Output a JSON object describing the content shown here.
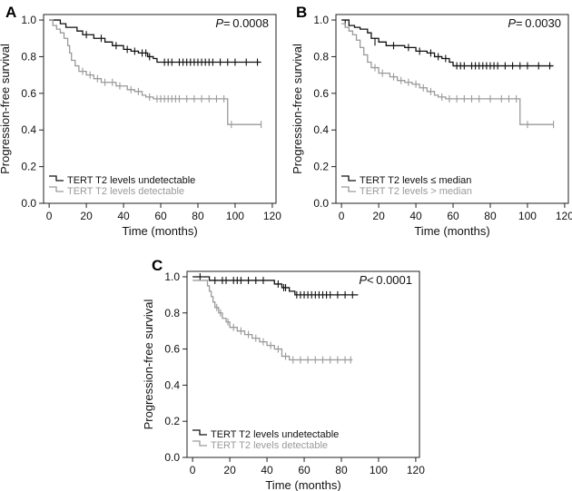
{
  "colors": {
    "dark": "#111111",
    "light": "#9a9a9a",
    "axis": "#222222"
  },
  "chart_data": [
    {
      "panel": "A",
      "type": "line",
      "subtype": "kaplan-meier",
      "xlabel": "Time (months)",
      "ylabel": "Progression-free survival",
      "xticks": [
        0,
        20,
        40,
        60,
        80,
        100,
        120
      ],
      "yticks": [
        "0.0",
        "0.2",
        "0.4",
        "0.6",
        "0.8",
        "1.0"
      ],
      "xlim": [
        -3,
        122
      ],
      "ylim": [
        0,
        1.03
      ],
      "p_label": "P",
      "p_value": "= 0.0008",
      "legend_position": "bottom-left",
      "series": [
        {
          "name": "TERT T2 levels undetectable",
          "color": "dark",
          "steps": [
            [
              0,
              1.0
            ],
            [
              6,
              0.98
            ],
            [
              9,
              0.96
            ],
            [
              15,
              0.94
            ],
            [
              18,
              0.92
            ],
            [
              24,
              0.9
            ],
            [
              30,
              0.88
            ],
            [
              34,
              0.86
            ],
            [
              40,
              0.84
            ],
            [
              44,
              0.83
            ],
            [
              48,
              0.82
            ],
            [
              53,
              0.8
            ],
            [
              56,
              0.79
            ],
            [
              58,
              0.77
            ],
            [
              114,
              0.77
            ]
          ],
          "censor": [
            [
              20,
              0.92
            ],
            [
              28,
              0.9
            ],
            [
              36,
              0.86
            ],
            [
              42,
              0.84
            ],
            [
              46,
              0.83
            ],
            [
              50,
              0.82
            ],
            [
              52,
              0.82
            ],
            [
              54,
              0.8
            ],
            [
              62,
              0.77
            ],
            [
              64,
              0.77
            ],
            [
              66,
              0.77
            ],
            [
              70,
              0.77
            ],
            [
              72,
              0.77
            ],
            [
              74,
              0.77
            ],
            [
              76,
              0.77
            ],
            [
              78,
              0.77
            ],
            [
              80,
              0.77
            ],
            [
              82,
              0.77
            ],
            [
              84,
              0.77
            ],
            [
              86,
              0.77
            ],
            [
              88,
              0.77
            ],
            [
              92,
              0.77
            ],
            [
              96,
              0.77
            ],
            [
              100,
              0.77
            ],
            [
              106,
              0.77
            ],
            [
              112,
              0.77
            ]
          ]
        },
        {
          "name": "TERT T2 levels detectable",
          "color": "light",
          "steps": [
            [
              0,
              1.0
            ],
            [
              2,
              0.97
            ],
            [
              4,
              0.95
            ],
            [
              6,
              0.93
            ],
            [
              8,
              0.9
            ],
            [
              10,
              0.86
            ],
            [
              11,
              0.82
            ],
            [
              12,
              0.78
            ],
            [
              14,
              0.75
            ],
            [
              16,
              0.72
            ],
            [
              20,
              0.7
            ],
            [
              24,
              0.68
            ],
            [
              28,
              0.66
            ],
            [
              36,
              0.64
            ],
            [
              42,
              0.62
            ],
            [
              46,
              0.61
            ],
            [
              50,
              0.59
            ],
            [
              52,
              0.58
            ],
            [
              56,
              0.57
            ],
            [
              96,
              0.57
            ],
            [
              96,
              0.43
            ],
            [
              114,
              0.43
            ]
          ],
          "censor": [
            [
              18,
              0.72
            ],
            [
              22,
              0.7
            ],
            [
              26,
              0.68
            ],
            [
              30,
              0.66
            ],
            [
              34,
              0.66
            ],
            [
              38,
              0.64
            ],
            [
              44,
              0.62
            ],
            [
              48,
              0.61
            ],
            [
              54,
              0.58
            ],
            [
              58,
              0.57
            ],
            [
              60,
              0.57
            ],
            [
              62,
              0.57
            ],
            [
              64,
              0.57
            ],
            [
              66,
              0.57
            ],
            [
              68,
              0.57
            ],
            [
              70,
              0.57
            ],
            [
              74,
              0.57
            ],
            [
              78,
              0.57
            ],
            [
              82,
              0.57
            ],
            [
              86,
              0.57
            ],
            [
              90,
              0.57
            ],
            [
              94,
              0.57
            ],
            [
              98,
              0.43
            ],
            [
              114,
              0.43
            ]
          ]
        }
      ]
    },
    {
      "panel": "B",
      "type": "line",
      "subtype": "kaplan-meier",
      "xlabel": "Time (months)",
      "ylabel": "Progression-free survival",
      "xticks": [
        0,
        20,
        40,
        60,
        80,
        100,
        120
      ],
      "yticks": [
        "0.0",
        "0.2",
        "0.4",
        "0.6",
        "0.8",
        "1.0"
      ],
      "xlim": [
        -3,
        122
      ],
      "ylim": [
        0,
        1.03
      ],
      "p_label": "P",
      "p_value": "= 0.0030",
      "legend_position": "bottom-left",
      "series": [
        {
          "name": "TERT T2 levels ≤ median",
          "color": "dark",
          "steps": [
            [
              0,
              1.0
            ],
            [
              4,
              0.97
            ],
            [
              7,
              0.96
            ],
            [
              10,
              0.95
            ],
            [
              14,
              0.93
            ],
            [
              16,
              0.9
            ],
            [
              20,
              0.88
            ],
            [
              24,
              0.86
            ],
            [
              34,
              0.85
            ],
            [
              40,
              0.83
            ],
            [
              46,
              0.82
            ],
            [
              50,
              0.8
            ],
            [
              54,
              0.79
            ],
            [
              58,
              0.77
            ],
            [
              60,
              0.75
            ],
            [
              114,
              0.75
            ]
          ],
          "censor": [
            [
              2,
              0.98
            ],
            [
              18,
              0.88
            ],
            [
              28,
              0.86
            ],
            [
              36,
              0.85
            ],
            [
              42,
              0.83
            ],
            [
              48,
              0.82
            ],
            [
              52,
              0.8
            ],
            [
              56,
              0.79
            ],
            [
              62,
              0.75
            ],
            [
              64,
              0.75
            ],
            [
              66,
              0.75
            ],
            [
              70,
              0.75
            ],
            [
              72,
              0.75
            ],
            [
              74,
              0.75
            ],
            [
              76,
              0.75
            ],
            [
              78,
              0.75
            ],
            [
              80,
              0.75
            ],
            [
              82,
              0.75
            ],
            [
              84,
              0.75
            ],
            [
              88,
              0.75
            ],
            [
              92,
              0.75
            ],
            [
              96,
              0.75
            ],
            [
              100,
              0.75
            ],
            [
              106,
              0.75
            ],
            [
              112,
              0.75
            ]
          ]
        },
        {
          "name": "TERT T2 levels > median",
          "color": "light",
          "steps": [
            [
              0,
              0.98
            ],
            [
              2,
              0.96
            ],
            [
              4,
              0.94
            ],
            [
              6,
              0.92
            ],
            [
              8,
              0.89
            ],
            [
              10,
              0.85
            ],
            [
              12,
              0.81
            ],
            [
              14,
              0.77
            ],
            [
              16,
              0.74
            ],
            [
              20,
              0.71
            ],
            [
              26,
              0.69
            ],
            [
              30,
              0.67
            ],
            [
              34,
              0.66
            ],
            [
              38,
              0.65
            ],
            [
              42,
              0.63
            ],
            [
              46,
              0.61
            ],
            [
              50,
              0.59
            ],
            [
              52,
              0.58
            ],
            [
              56,
              0.57
            ],
            [
              96,
              0.57
            ],
            [
              96,
              0.43
            ],
            [
              114,
              0.43
            ]
          ],
          "censor": [
            [
              18,
              0.74
            ],
            [
              22,
              0.71
            ],
            [
              28,
              0.69
            ],
            [
              32,
              0.67
            ],
            [
              36,
              0.66
            ],
            [
              40,
              0.65
            ],
            [
              44,
              0.63
            ],
            [
              48,
              0.61
            ],
            [
              54,
              0.58
            ],
            [
              58,
              0.57
            ],
            [
              62,
              0.57
            ],
            [
              66,
              0.57
            ],
            [
              70,
              0.57
            ],
            [
              74,
              0.57
            ],
            [
              80,
              0.57
            ],
            [
              86,
              0.57
            ],
            [
              90,
              0.57
            ],
            [
              94,
              0.57
            ],
            [
              100,
              0.43
            ],
            [
              114,
              0.43
            ]
          ]
        }
      ]
    },
    {
      "panel": "C",
      "type": "line",
      "subtype": "kaplan-meier",
      "xlabel": "Time (months)",
      "ylabel": "Progression-free survival",
      "xticks": [
        0,
        20,
        40,
        60,
        80,
        100,
        120
      ],
      "yticks": [
        "0.0",
        "0.2",
        "0.4",
        "0.6",
        "0.8",
        "1.0"
      ],
      "xlim": [
        -3,
        122
      ],
      "ylim": [
        0,
        1.03
      ],
      "p_label": "P",
      "p_value": "< 0.0001",
      "legend_position": "bottom-left",
      "series": [
        {
          "name": "TERT T2 levels undetectable",
          "color": "dark",
          "steps": [
            [
              0,
              1.0
            ],
            [
              9,
              0.98
            ],
            [
              40,
              0.98
            ],
            [
              44,
              0.96
            ],
            [
              48,
              0.94
            ],
            [
              52,
              0.92
            ],
            [
              55,
              0.9
            ],
            [
              89,
              0.9
            ]
          ],
          "censor": [
            [
              4,
              1.0
            ],
            [
              12,
              0.98
            ],
            [
              16,
              0.98
            ],
            [
              18,
              0.98
            ],
            [
              22,
              0.98
            ],
            [
              24,
              0.98
            ],
            [
              26,
              0.98
            ],
            [
              30,
              0.98
            ],
            [
              34,
              0.98
            ],
            [
              38,
              0.98
            ],
            [
              46,
              0.96
            ],
            [
              49,
              0.94
            ],
            [
              50,
              0.94
            ],
            [
              56,
              0.9
            ],
            [
              58,
              0.9
            ],
            [
              60,
              0.9
            ],
            [
              62,
              0.9
            ],
            [
              64,
              0.9
            ],
            [
              66,
              0.9
            ],
            [
              68,
              0.9
            ],
            [
              70,
              0.9
            ],
            [
              72,
              0.9
            ],
            [
              74,
              0.9
            ],
            [
              78,
              0.9
            ],
            [
              82,
              0.9
            ],
            [
              86,
              0.9
            ]
          ]
        },
        {
          "name": "TERT T2 levels detectable",
          "color": "light",
          "steps": [
            [
              0,
              0.98
            ],
            [
              8,
              0.95
            ],
            [
              9,
              0.92
            ],
            [
              10,
              0.89
            ],
            [
              11,
              0.86
            ],
            [
              12,
              0.83
            ],
            [
              14,
              0.8
            ],
            [
              16,
              0.77
            ],
            [
              18,
              0.75
            ],
            [
              20,
              0.72
            ],
            [
              24,
              0.7
            ],
            [
              28,
              0.68
            ],
            [
              32,
              0.66
            ],
            [
              36,
              0.64
            ],
            [
              40,
              0.62
            ],
            [
              44,
              0.6
            ],
            [
              48,
              0.56
            ],
            [
              52,
              0.54
            ],
            [
              86,
              0.54
            ]
          ],
          "censor": [
            [
              13,
              0.83
            ],
            [
              15,
              0.8
            ],
            [
              19,
              0.75
            ],
            [
              22,
              0.72
            ],
            [
              26,
              0.7
            ],
            [
              30,
              0.68
            ],
            [
              34,
              0.66
            ],
            [
              38,
              0.64
            ],
            [
              42,
              0.62
            ],
            [
              46,
              0.6
            ],
            [
              50,
              0.56
            ],
            [
              54,
              0.54
            ],
            [
              58,
              0.54
            ],
            [
              62,
              0.54
            ],
            [
              66,
              0.54
            ],
            [
              70,
              0.54
            ],
            [
              74,
              0.54
            ],
            [
              78,
              0.54
            ],
            [
              82,
              0.54
            ],
            [
              85,
              0.54
            ]
          ]
        }
      ]
    }
  ]
}
